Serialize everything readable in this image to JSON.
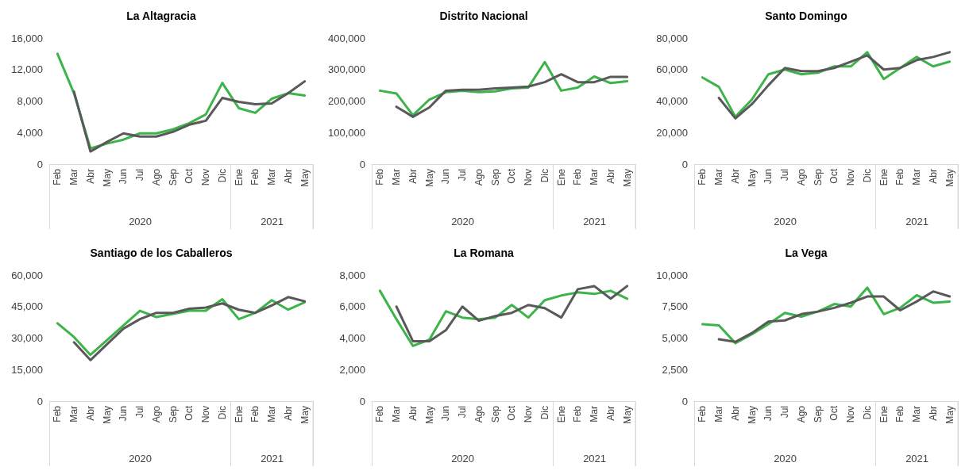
{
  "chart_data": [
    {
      "type": "line",
      "title": "La Altagracia",
      "categories": [
        "Feb",
        "Mar",
        "Abr",
        "May",
        "Jun",
        "Jul",
        "Ago",
        "Sep",
        "Oct",
        "Nov",
        "Dic",
        "Ene",
        "Feb",
        "Mar",
        "Abr",
        "May"
      ],
      "annotations": [
        "2020",
        "2021"
      ],
      "ylim": [
        0,
        16000
      ],
      "yticks": [
        {
          "value": 0,
          "label": "0"
        },
        {
          "value": 4000,
          "label": "4,000"
        },
        {
          "value": 8000,
          "label": "8,000"
        },
        {
          "value": 12000,
          "label": "12,000"
        },
        {
          "value": 16000,
          "label": "16,000"
        }
      ],
      "marker": "none",
      "line_style": "solid",
      "series": [
        {
          "color": "#3cb44a",
          "values": [
            14000,
            9000,
            2000,
            2600,
            3100,
            3900,
            3900,
            4400,
            5200,
            6300,
            10300,
            7100,
            6500,
            8300,
            9000,
            8700
          ]
        },
        {
          "color": "#595959",
          "values": [
            null,
            9200,
            1600,
            2800,
            3900,
            3500,
            3500,
            4100,
            5000,
            5500,
            8400,
            7900,
            7600,
            7700,
            9000,
            10500
          ]
        }
      ]
    },
    {
      "type": "line",
      "title": "Distrito Nacional",
      "categories": [
        "Feb",
        "Mar",
        "Abr",
        "May",
        "Jun",
        "Jul",
        "Ago",
        "Sep",
        "Oct",
        "Nov",
        "Dic",
        "Ene",
        "Feb",
        "Mar",
        "Abr",
        "May"
      ],
      "annotations": [
        "2020",
        "2021"
      ],
      "ylim": [
        0,
        400000
      ],
      "yticks": [
        {
          "value": 0,
          "label": "0"
        },
        {
          "value": 100000,
          "label": "100,000"
        },
        {
          "value": 200000,
          "label": "200,000"
        },
        {
          "value": 300000,
          "label": "300,000"
        },
        {
          "value": 400000,
          "label": "400,000"
        }
      ],
      "marker": "none",
      "line_style": "solid",
      "series": [
        {
          "color": "#3cb44a",
          "values": [
            233000,
            224000,
            155000,
            205000,
            228000,
            233000,
            228000,
            231000,
            240000,
            243000,
            324000,
            233000,
            243000,
            278000,
            257000,
            263000
          ]
        },
        {
          "color": "#595959",
          "values": [
            null,
            182000,
            150000,
            180000,
            233000,
            236000,
            236000,
            240000,
            243000,
            246000,
            260000,
            285000,
            260000,
            260000,
            277000,
            277000
          ]
        }
      ]
    },
    {
      "type": "line",
      "title": "Santo Domingo",
      "categories": [
        "Feb",
        "Mar",
        "Abr",
        "May",
        "Jun",
        "Jul",
        "Ago",
        "Sep",
        "Oct",
        "Nov",
        "Dic",
        "Ene",
        "Feb",
        "Mar",
        "Abr",
        "May"
      ],
      "annotations": [
        "2020",
        "2021"
      ],
      "ylim": [
        0,
        80000
      ],
      "yticks": [
        {
          "value": 0,
          "label": "0"
        },
        {
          "value": 20000,
          "label": "20,000"
        },
        {
          "value": 40000,
          "label": "40,000"
        },
        {
          "value": 60000,
          "label": "60,000"
        },
        {
          "value": 80000,
          "label": "80,000"
        }
      ],
      "marker": "none",
      "line_style": "solid",
      "series": [
        {
          "color": "#3cb44a",
          "values": [
            55000,
            49000,
            30000,
            41000,
            57000,
            60000,
            57000,
            58000,
            62000,
            62000,
            71000,
            54000,
            61000,
            68000,
            62000,
            65000
          ]
        },
        {
          "color": "#595959",
          "values": [
            null,
            42000,
            29000,
            38000,
            50000,
            61000,
            59000,
            59000,
            61000,
            65000,
            69000,
            60000,
            61000,
            66000,
            68000,
            71000
          ]
        }
      ]
    },
    {
      "type": "line",
      "title": "Santiago de los Caballeros",
      "categories": [
        "Feb",
        "Mar",
        "Abr",
        "May",
        "Jun",
        "Jul",
        "Ago",
        "Sep",
        "Oct",
        "Nov",
        "Dic",
        "Ene",
        "Feb",
        "Mar",
        "Abr",
        "May"
      ],
      "annotations": [
        "2020",
        "2021"
      ],
      "ylim": [
        0,
        60000
      ],
      "yticks": [
        {
          "value": 0,
          "label": "0"
        },
        {
          "value": 15000,
          "label": "15,000"
        },
        {
          "value": 30000,
          "label": "30,000"
        },
        {
          "value": 45000,
          "label": "45,000"
        },
        {
          "value": 60000,
          "label": "60,000"
        }
      ],
      "marker": "none",
      "line_style": "solid",
      "series": [
        {
          "color": "#3cb44a",
          "values": [
            37000,
            30500,
            22000,
            29000,
            36000,
            43000,
            40000,
            41500,
            43000,
            43000,
            48500,
            39000,
            42000,
            48000,
            43500,
            47000
          ]
        },
        {
          "color": "#595959",
          "values": [
            null,
            28000,
            19500,
            27000,
            34500,
            39000,
            42000,
            42000,
            44000,
            44500,
            46500,
            43500,
            42000,
            45500,
            49500,
            47500
          ]
        }
      ]
    },
    {
      "type": "line",
      "title": "La Romana",
      "categories": [
        "Feb",
        "Mar",
        "Abr",
        "May",
        "Jun",
        "Jul",
        "Ago",
        "Sep",
        "Oct",
        "Nov",
        "Dic",
        "Ene",
        "Feb",
        "Mar",
        "Abr",
        "May"
      ],
      "annotations": [
        "2020",
        "2021"
      ],
      "ylim": [
        0,
        8000
      ],
      "yticks": [
        {
          "value": 0,
          "label": "0"
        },
        {
          "value": 2000,
          "label": "2,000"
        },
        {
          "value": 4000,
          "label": "4,000"
        },
        {
          "value": 6000,
          "label": "6,000"
        },
        {
          "value": 8000,
          "label": "8,000"
        }
      ],
      "marker": "none",
      "line_style": "solid",
      "series": [
        {
          "color": "#3cb44a",
          "values": [
            7000,
            5200,
            3500,
            3900,
            5700,
            5300,
            5200,
            5300,
            6100,
            5300,
            6400,
            6700,
            6900,
            6800,
            7000,
            6500
          ]
        },
        {
          "color": "#595959",
          "values": [
            null,
            6000,
            3800,
            3800,
            4500,
            6000,
            5100,
            5400,
            5600,
            6100,
            5900,
            5300,
            7100,
            7300,
            6500,
            7300
          ]
        }
      ]
    },
    {
      "type": "line",
      "title": "La Vega",
      "categories": [
        "Feb",
        "Mar",
        "Abr",
        "May",
        "Jun",
        "Jul",
        "Ago",
        "Sep",
        "Oct",
        "Nov",
        "Dic",
        "Ene",
        "Feb",
        "Mar",
        "Abr",
        "May"
      ],
      "annotations": [
        "2020",
        "2021"
      ],
      "ylim": [
        0,
        10000
      ],
      "yticks": [
        {
          "value": 0,
          "label": "0"
        },
        {
          "value": 2500,
          "label": "2,500"
        },
        {
          "value": 5000,
          "label": "5,000"
        },
        {
          "value": 7500,
          "label": "7,500"
        },
        {
          "value": 10000,
          "label": "10,000"
        }
      ],
      "marker": "none",
      "line_style": "solid",
      "series": [
        {
          "color": "#3cb44a",
          "values": [
            6100,
            6000,
            4600,
            5300,
            6100,
            7000,
            6700,
            7100,
            7700,
            7500,
            9000,
            6900,
            7400,
            8400,
            7800,
            7900
          ]
        },
        {
          "color": "#595959",
          "values": [
            null,
            4900,
            4700,
            5400,
            6300,
            6400,
            6900,
            7100,
            7400,
            7800,
            8300,
            8300,
            7200,
            7900,
            8700,
            8300
          ]
        }
      ]
    }
  ]
}
